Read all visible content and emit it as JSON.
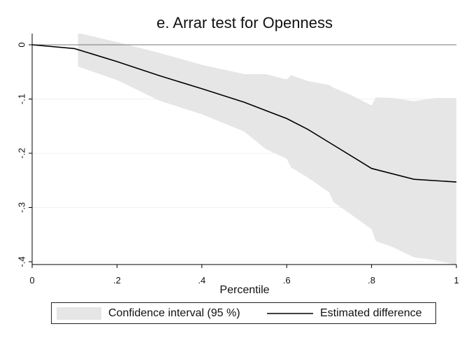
{
  "chart_data": {
    "type": "area",
    "title": "e. Arrar test for Openness",
    "xlabel": "Percentile",
    "ylabel": "",
    "xlim": [
      0,
      1
    ],
    "ylim": [
      -0.4,
      0
    ],
    "x_ticks": [
      0,
      0.2,
      0.4,
      0.6,
      0.8,
      1
    ],
    "x_tick_labels": [
      "0",
      ".2",
      ".4",
      ".6",
      ".8",
      "1"
    ],
    "y_ticks": [
      0,
      -0.1,
      -0.2,
      -0.3,
      -0.4
    ],
    "y_tick_labels": [
      "0",
      "-.1",
      "-.2",
      "-.3",
      "-.4"
    ],
    "grid": "horizontal",
    "reference_line": 0,
    "legend": {
      "position": "bottom",
      "entries": [
        "Confidence interval (95 %)",
        "Estimated difference"
      ]
    },
    "series": [
      {
        "name": "Estimated difference",
        "kind": "line",
        "color": "#000000",
        "x": [
          0,
          0.1,
          0.2,
          0.3,
          0.4,
          0.5,
          0.6,
          0.65,
          0.7,
          0.8,
          0.9,
          1.0
        ],
        "y": [
          0,
          -0.007,
          -0.031,
          -0.057,
          -0.081,
          -0.106,
          -0.136,
          -0.156,
          -0.18,
          -0.228,
          -0.248,
          -0.253
        ]
      },
      {
        "name": "Confidence interval (95 %)",
        "kind": "band",
        "color": "#e6e6e6",
        "x": [
          0.108,
          0.2,
          0.3,
          0.4,
          0.5,
          0.55,
          0.6,
          0.61,
          0.65,
          0.7,
          0.71,
          0.75,
          0.8,
          0.81,
          0.85,
          0.9,
          0.95,
          1.0
        ],
        "upper": [
          0.022,
          0.005,
          -0.015,
          -0.037,
          -0.054,
          -0.054,
          -0.064,
          -0.056,
          -0.067,
          -0.074,
          -0.079,
          -0.092,
          -0.112,
          -0.097,
          -0.098,
          -0.104,
          -0.098,
          -0.098
        ],
        "lower": [
          -0.04,
          -0.065,
          -0.103,
          -0.128,
          -0.16,
          -0.192,
          -0.21,
          -0.226,
          -0.245,
          -0.272,
          -0.29,
          -0.312,
          -0.34,
          -0.362,
          -0.373,
          -0.392,
          -0.397,
          -0.406
        ]
      }
    ]
  }
}
